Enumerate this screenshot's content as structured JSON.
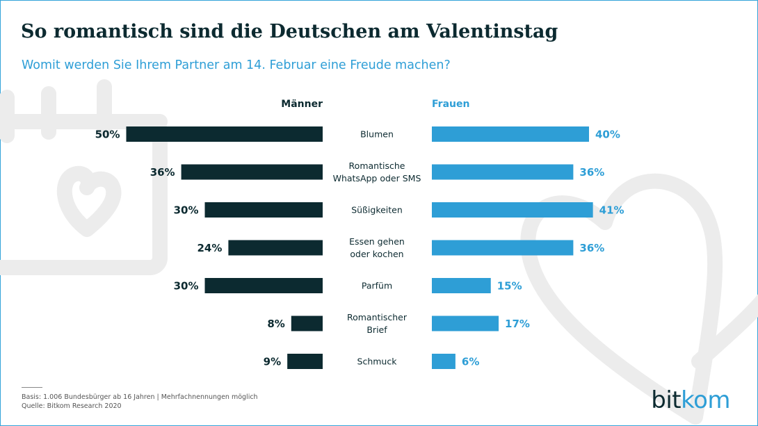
{
  "title": "So romantisch sind die Deutschen am Valentinstag",
  "subtitle": "Womit werden Sie Ihrem Partner am 14. Februar eine Freude machen?",
  "colors": {
    "men": "#0c2a30",
    "women": "#2e9ed6",
    "text": "#0c2a30",
    "decoration": "#ececec",
    "frame": "#33a3d9"
  },
  "chart_data": {
    "type": "bar",
    "orientation": "horizontal",
    "layout": "butterfly",
    "categories": [
      [
        "Blumen"
      ],
      [
        "Romantische",
        "WhatsApp oder SMS"
      ],
      [
        "Süßigkeiten"
      ],
      [
        "Essen gehen",
        "oder kochen"
      ],
      [
        "Parfüm"
      ],
      [
        "Romantischer",
        "Brief"
      ],
      [
        "Schmuck"
      ]
    ],
    "series": [
      {
        "name": "Männer",
        "values": [
          50,
          36,
          30,
          24,
          30,
          8,
          9
        ]
      },
      {
        "name": "Frauen",
        "values": [
          40,
          36,
          41,
          36,
          15,
          17,
          6
        ]
      }
    ],
    "unit": "%",
    "grid": false,
    "legend": "column headers"
  },
  "footer": {
    "basis": "Basis: 1.006 Bundesbürger ab 16 Jahren | Mehrfachnennungen möglich",
    "source": "Quelle: Bitkom Research 2020"
  },
  "logo": {
    "part1": "bit",
    "part2": "kom"
  }
}
